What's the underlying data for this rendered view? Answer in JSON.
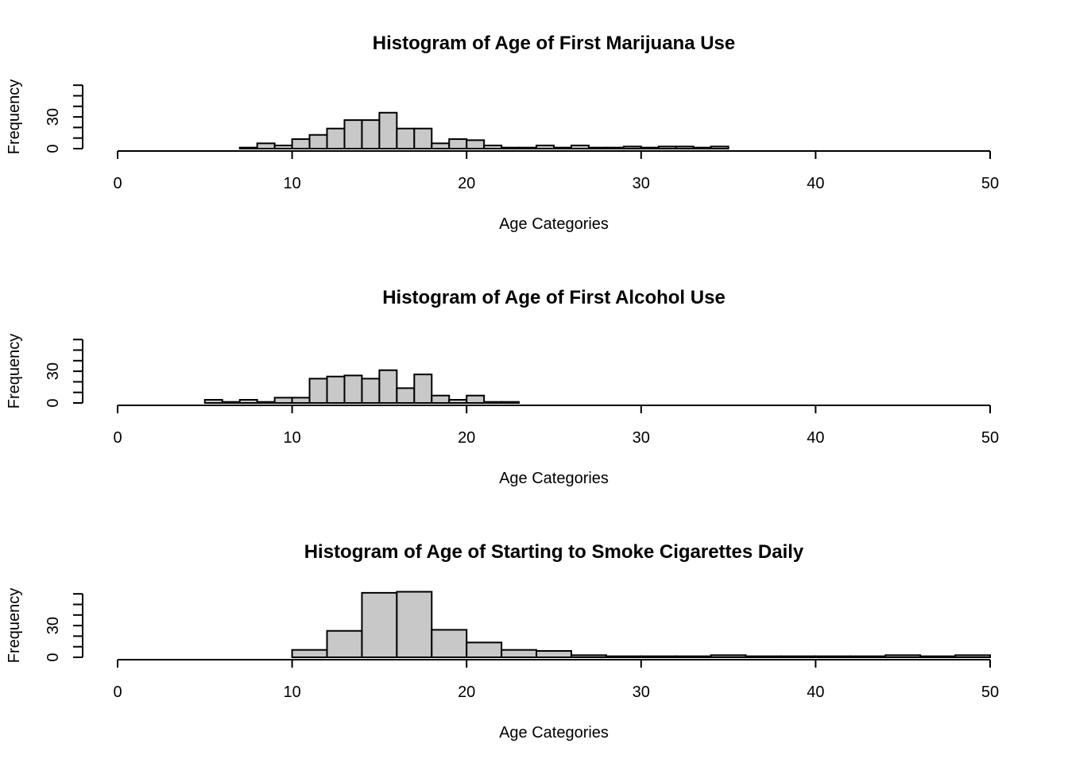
{
  "chart_data": [
    {
      "type": "bar",
      "title": "Histogram of Age of First Marijuana Use",
      "xlabel": "Age Categories",
      "ylabel": "Frequency",
      "xlim": [
        0,
        50
      ],
      "ylim": [
        0,
        60
      ],
      "x_ticks": [
        0,
        10,
        20,
        30,
        40,
        50
      ],
      "y_ticks": [
        0,
        30
      ],
      "bin_edges": [
        7,
        8,
        9,
        10,
        11,
        12,
        13,
        14,
        15,
        16,
        17,
        18,
        19,
        20,
        21,
        22,
        23,
        24,
        25,
        26,
        27,
        28,
        29,
        30,
        31,
        32,
        33,
        34,
        35
      ],
      "values": [
        1,
        5,
        3,
        9,
        13,
        19,
        27,
        27,
        34,
        19,
        19,
        5,
        9,
        8,
        3,
        1,
        1,
        3,
        1,
        3,
        1,
        1,
        2,
        1,
        2,
        2,
        1,
        2
      ]
    },
    {
      "type": "bar",
      "title": "Histogram of Age of First Alcohol Use",
      "xlabel": "Age Categories",
      "ylabel": "Frequency",
      "xlim": [
        0,
        50
      ],
      "ylim": [
        0,
        60
      ],
      "x_ticks": [
        0,
        10,
        20,
        30,
        40,
        50
      ],
      "y_ticks": [
        0,
        30
      ],
      "bin_edges": [
        5,
        6,
        7,
        8,
        9,
        10,
        11,
        12,
        13,
        14,
        15,
        16,
        17,
        18,
        19,
        20,
        21,
        22,
        23
      ],
      "values": [
        3,
        1,
        3,
        1,
        5,
        5,
        23,
        25,
        26,
        23,
        31,
        14,
        27,
        7,
        3,
        7,
        1,
        1
      ]
    },
    {
      "type": "bar",
      "title": "Histogram of Age of Starting to Smoke Cigarettes Daily",
      "xlabel": "Age Categories",
      "ylabel": "Frequency",
      "xlim": [
        0,
        50
      ],
      "ylim": [
        0,
        60
      ],
      "x_ticks": [
        0,
        10,
        20,
        30,
        40,
        50
      ],
      "y_ticks": [
        0,
        30
      ],
      "bin_edges": [
        10,
        12,
        14,
        16,
        18,
        20,
        22,
        24,
        26,
        28,
        30,
        32,
        34,
        36,
        38,
        40,
        42,
        44,
        46,
        48,
        50
      ],
      "values": [
        7,
        25,
        61,
        62,
        26,
        14,
        7,
        6,
        2,
        1,
        1,
        1,
        2,
        1,
        1,
        1,
        1,
        2,
        1,
        2
      ]
    }
  ]
}
